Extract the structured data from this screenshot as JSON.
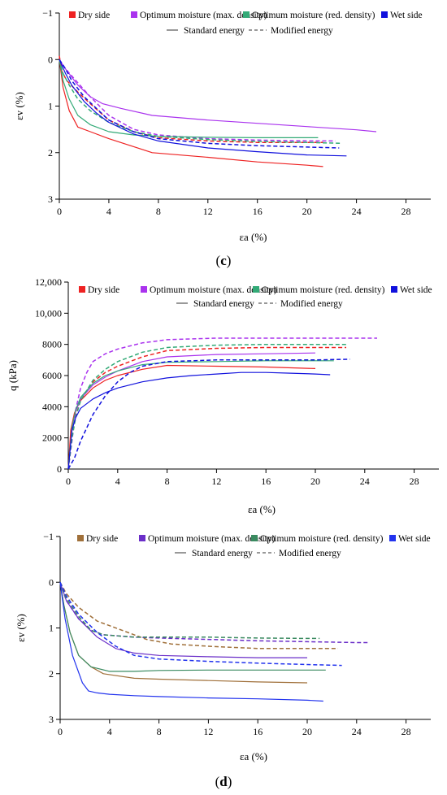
{
  "panel_labels": {
    "c": "c",
    "d": "d"
  },
  "legend_entries": [
    "Dry side",
    "Optimum moisture (max. density)",
    "Optimum moisture (red. density)",
    "Wet side"
  ],
  "legend_styles": [
    "Standard energy",
    "Modified energy"
  ],
  "chart_data": [
    {
      "type": "line",
      "xlabel": "εa (%)",
      "ylabel": "εv (%)",
      "xlim": [
        0,
        30
      ],
      "ylim": [
        -1,
        3
      ],
      "y_inverted": true,
      "xticks": [
        0,
        4,
        8,
        12,
        16,
        20,
        24,
        28
      ],
      "yticks": [
        -1,
        0,
        1,
        2,
        3
      ],
      "colors": {
        "dry": "#ee2222",
        "optmax": "#aa33ee",
        "optred": "#33aa77",
        "wet": "#1111dd"
      },
      "series": [
        {
          "name": "Dry side",
          "group": "dry",
          "energy": "standard",
          "x": [
            0,
            0.3,
            0.8,
            1.5,
            2.5,
            4,
            7.5,
            12,
            16,
            20,
            21.3
          ],
          "y": [
            0,
            0.6,
            1.1,
            1.45,
            1.55,
            1.7,
            2.0,
            2.1,
            2.2,
            2.27,
            2.3
          ]
        },
        {
          "name": "Dry side",
          "group": "dry",
          "energy": "modified",
          "x": [
            0,
            0.2,
            0.6,
            1.5,
            2.5,
            4,
            6,
            8,
            12,
            16,
            20,
            21.3
          ],
          "y": [
            -0.08,
            0.25,
            0.45,
            0.7,
            0.95,
            1.3,
            1.55,
            1.68,
            1.75,
            1.78,
            1.78,
            1.78
          ]
        },
        {
          "name": "Optimum moisture (max. density)",
          "group": "optmax",
          "energy": "standard",
          "x": [
            0,
            0.5,
            1.5,
            2.5,
            3.5,
            5,
            7.5,
            12,
            16,
            20,
            24,
            25.6
          ],
          "y": [
            0,
            0.2,
            0.55,
            0.8,
            0.95,
            1.05,
            1.2,
            1.3,
            1.37,
            1.44,
            1.51,
            1.55
          ]
        },
        {
          "name": "Optimum moisture (max. density)",
          "group": "optmax",
          "energy": "modified",
          "x": [
            0,
            0.5,
            1.5,
            2.5,
            4,
            6,
            8,
            12,
            16,
            20,
            22.3
          ],
          "y": [
            0,
            0.2,
            0.5,
            0.8,
            1.2,
            1.5,
            1.62,
            1.7,
            1.73,
            1.75,
            1.75
          ]
        },
        {
          "name": "Optimum moisture (red. density)",
          "group": "optred",
          "energy": "standard",
          "x": [
            0,
            0.3,
            0.8,
            1.5,
            2.5,
            4,
            6,
            8,
            12,
            16,
            20,
            20.9
          ],
          "y": [
            0,
            0.45,
            0.85,
            1.2,
            1.4,
            1.55,
            1.62,
            1.65,
            1.67,
            1.68,
            1.68,
            1.68
          ]
        },
        {
          "name": "Optimum moisture (red. density)",
          "group": "optred",
          "energy": "modified",
          "x": [
            0,
            0.3,
            0.8,
            1.5,
            2.5,
            4,
            6,
            8,
            12,
            16,
            20,
            22.8
          ],
          "y": [
            0,
            0.3,
            0.55,
            0.85,
            1.1,
            1.35,
            1.55,
            1.65,
            1.72,
            1.76,
            1.78,
            1.8
          ]
        },
        {
          "name": "Wet side",
          "group": "wet",
          "energy": "standard",
          "x": [
            0,
            0.5,
            1,
            2,
            3,
            4,
            6,
            8,
            12,
            16,
            20,
            23.2
          ],
          "y": [
            0,
            0.3,
            0.55,
            0.9,
            1.15,
            1.35,
            1.6,
            1.75,
            1.9,
            1.98,
            2.05,
            2.07
          ]
        },
        {
          "name": "Wet side",
          "group": "wet",
          "energy": "modified",
          "x": [
            0,
            0.5,
            1,
            2,
            3,
            4,
            6,
            8,
            12,
            16,
            20,
            22.6
          ],
          "y": [
            0,
            0.2,
            0.45,
            0.8,
            1.05,
            1.3,
            1.55,
            1.7,
            1.8,
            1.85,
            1.88,
            1.9
          ]
        }
      ]
    },
    {
      "type": "line",
      "xlabel": "εa (%)",
      "ylabel": "q (kPa)",
      "xlim": [
        0,
        30
      ],
      "ylim": [
        0,
        12000
      ],
      "y_inverted": false,
      "xticks": [
        0,
        4,
        8,
        12,
        16,
        20,
        24,
        28
      ],
      "yticks": [
        0,
        2000,
        4000,
        6000,
        8000,
        10000,
        12000
      ],
      "ytick_labels": [
        "0",
        "2000",
        "4000",
        "6000",
        "8000",
        "10,000",
        "12,000"
      ],
      "colors": {
        "dry": "#ee2222",
        "optmax": "#aa33ee",
        "optred": "#33aa77",
        "wet": "#1111dd"
      },
      "series": [
        {
          "name": "Dry side",
          "group": "dry",
          "energy": "standard",
          "x": [
            0,
            0.2,
            0.5,
            1,
            2,
            3,
            4,
            6,
            8,
            12,
            16,
            20
          ],
          "y": [
            0,
            2500,
            3600,
            4400,
            5200,
            5700,
            6000,
            6400,
            6650,
            6600,
            6550,
            6450
          ]
        },
        {
          "name": "Dry side",
          "group": "dry",
          "energy": "modified",
          "x": [
            0,
            0.3,
            0.6,
            1,
            2,
            3,
            4,
            6,
            8,
            12,
            16,
            20,
            22.5
          ],
          "y": [
            0,
            2000,
            3400,
            4400,
            5600,
            6200,
            6600,
            7200,
            7600,
            7750,
            7800,
            7800,
            7800
          ]
        },
        {
          "name": "Optimum moisture (max. density)",
          "group": "optmax",
          "energy": "standard",
          "x": [
            0,
            0.3,
            0.6,
            1,
            2,
            3,
            4,
            6,
            8,
            12,
            16,
            20
          ],
          "y": [
            0,
            2600,
            3700,
            4500,
            5400,
            5900,
            6300,
            6900,
            7200,
            7350,
            7400,
            7450
          ]
        },
        {
          "name": "Optimum moisture (max. density)",
          "group": "optmax",
          "energy": "modified",
          "x": [
            0,
            0.3,
            0.6,
            1,
            1.5,
            2,
            3,
            4,
            6,
            8,
            12,
            16,
            20,
            25
          ],
          "y": [
            0,
            1800,
            3800,
            5200,
            6200,
            6900,
            7400,
            7700,
            8100,
            8300,
            8400,
            8400,
            8400,
            8400
          ]
        },
        {
          "name": "Optimum moisture (red. density)",
          "group": "optred",
          "energy": "standard",
          "x": [
            0,
            0.3,
            0.6,
            1,
            2,
            3,
            4,
            6,
            8,
            12,
            16,
            20,
            21.5
          ],
          "y": [
            0,
            2700,
            3800,
            4600,
            5500,
            6000,
            6300,
            6700,
            6850,
            6900,
            6950,
            6950,
            6950
          ]
        },
        {
          "name": "Optimum moisture (red. density)",
          "group": "optred",
          "energy": "modified",
          "x": [
            0,
            0.3,
            0.6,
            1,
            2,
            3,
            4,
            6,
            8,
            12,
            16,
            20,
            22.5
          ],
          "y": [
            0,
            2000,
            3300,
            4400,
            5700,
            6400,
            6900,
            7500,
            7800,
            7950,
            8000,
            8000,
            8000
          ]
        },
        {
          "name": "Wet side",
          "group": "wet",
          "energy": "standard",
          "x": [
            0,
            0.3,
            0.6,
            1,
            2,
            3,
            4,
            6,
            8,
            10,
            12,
            14,
            16,
            18,
            20,
            21.2
          ],
          "y": [
            0,
            2500,
            3300,
            3900,
            4500,
            4900,
            5200,
            5600,
            5850,
            6000,
            6100,
            6200,
            6200,
            6150,
            6100,
            6050
          ]
        },
        {
          "name": "Wet side",
          "group": "wet",
          "energy": "modified",
          "x": [
            0,
            0.5,
            1,
            2,
            3,
            4,
            5,
            6,
            8,
            12,
            16,
            20,
            22.8
          ],
          "y": [
            0,
            700,
            1800,
            3500,
            4700,
            5600,
            6200,
            6600,
            6900,
            7000,
            7000,
            7000,
            7050
          ]
        }
      ]
    },
    {
      "type": "line",
      "xlabel": "εa (%)",
      "ylabel": "εv (%)",
      "xlim": [
        0,
        30
      ],
      "ylim": [
        -1,
        3
      ],
      "y_inverted": true,
      "xticks": [
        0,
        4,
        8,
        12,
        16,
        20,
        24,
        28
      ],
      "yticks": [
        -1,
        0,
        1,
        2,
        3
      ],
      "colors": {
        "dry": "#a0703a",
        "optmax": "#6a2ec8",
        "optred": "#3a8a60",
        "wet": "#2233ee"
      },
      "series": [
        {
          "name": "Dry side",
          "group": "dry",
          "energy": "standard",
          "x": [
            0,
            0.3,
            0.8,
            1.5,
            2.5,
            3.5,
            6,
            8,
            12,
            16,
            20
          ],
          "y": [
            0,
            0.5,
            1.1,
            1.6,
            1.85,
            2.0,
            2.1,
            2.12,
            2.15,
            2.18,
            2.2
          ]
        },
        {
          "name": "Dry side",
          "group": "dry",
          "energy": "modified",
          "x": [
            0,
            0.5,
            1.5,
            3,
            5,
            7,
            9,
            12,
            16,
            20,
            22.5
          ],
          "y": [
            0,
            0.25,
            0.55,
            0.85,
            1.05,
            1.25,
            1.35,
            1.4,
            1.45,
            1.45,
            1.45
          ]
        },
        {
          "name": "Optimum moisture (max. density)",
          "group": "optmax",
          "energy": "standard",
          "x": [
            0,
            0.5,
            1.5,
            3,
            4.5,
            6,
            8,
            12,
            16,
            20
          ],
          "y": [
            0,
            0.4,
            0.8,
            1.2,
            1.45,
            1.55,
            1.6,
            1.63,
            1.65,
            1.65
          ]
        },
        {
          "name": "Optimum moisture (max. density)",
          "group": "optmax",
          "energy": "modified",
          "x": [
            0,
            0.5,
            1.5,
            2.5,
            3.5,
            6,
            8,
            12,
            16,
            20,
            24,
            25
          ],
          "y": [
            0,
            0.4,
            0.8,
            1.05,
            1.15,
            1.2,
            1.22,
            1.25,
            1.28,
            1.3,
            1.32,
            1.32
          ]
        },
        {
          "name": "Optimum moisture (red. density)",
          "group": "optred",
          "energy": "standard",
          "x": [
            0,
            0.3,
            0.8,
            1.5,
            2.5,
            4,
            6,
            8,
            12,
            16,
            20,
            21.5
          ],
          "y": [
            0,
            0.5,
            1.1,
            1.6,
            1.85,
            1.95,
            1.95,
            1.93,
            1.92,
            1.92,
            1.92,
            1.92
          ]
        },
        {
          "name": "Optimum moisture (red. density)",
          "group": "optred",
          "energy": "modified",
          "x": [
            0,
            0.5,
            1.5,
            2.5,
            3.5,
            6,
            8,
            12,
            16,
            20,
            21
          ],
          "y": [
            0,
            0.35,
            0.75,
            1.05,
            1.15,
            1.2,
            1.2,
            1.2,
            1.22,
            1.23,
            1.23
          ]
        },
        {
          "name": "Wet side",
          "group": "wet",
          "energy": "standard",
          "x": [
            0,
            0.4,
            1,
            1.8,
            2.3,
            3,
            4,
            6,
            8,
            12,
            16,
            20,
            21.3
          ],
          "y": [
            0,
            0.8,
            1.6,
            2.2,
            2.38,
            2.42,
            2.45,
            2.48,
            2.5,
            2.53,
            2.55,
            2.58,
            2.6
          ]
        },
        {
          "name": "Wet side",
          "group": "wet",
          "energy": "modified",
          "x": [
            0,
            0.5,
            1.5,
            3,
            4.5,
            6,
            8,
            12,
            16,
            20,
            22.8
          ],
          "y": [
            0,
            0.3,
            0.7,
            1.1,
            1.4,
            1.6,
            1.68,
            1.73,
            1.77,
            1.8,
            1.82
          ]
        }
      ]
    }
  ]
}
